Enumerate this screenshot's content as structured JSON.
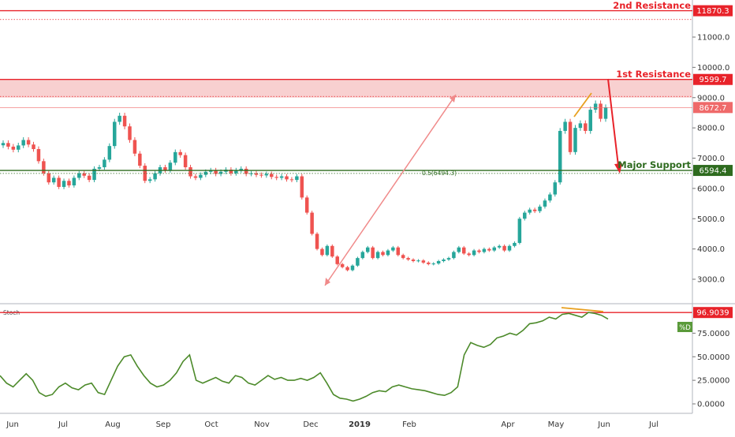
{
  "chart_data": {
    "type": "candlestick",
    "price_panel": {
      "y_ticks": [
        "3000.0",
        "4000.0",
        "5000.0",
        "6000.0",
        "7000.0",
        "8000.0",
        "9000.0",
        "10000.0",
        "11000.0"
      ],
      "levels": [
        {
          "name": "2nd Resistance",
          "value": 11870.3,
          "label": "11870.3",
          "color": "#e8232a"
        },
        {
          "name": "1st Resistance",
          "value": 9599.7,
          "label": "9599.7",
          "color": "#e8232a"
        },
        {
          "name": "current",
          "value": 8672.7,
          "label": "8672.7",
          "color": "#ef6a6a"
        },
        {
          "name": "Major Support",
          "value": 6594.4,
          "label": "6594.4",
          "color": "#2e6b1f"
        }
      ],
      "fib_label": "0.5(6494.3)",
      "closes": [
        7500,
        7380,
        7280,
        7420,
        7600,
        7450,
        7300,
        6900,
        6500,
        6200,
        6350,
        6050,
        6250,
        6100,
        6350,
        6500,
        6420,
        6280,
        6650,
        6700,
        6950,
        7400,
        8200,
        8400,
        8050,
        7600,
        7150,
        6750,
        6250,
        6300,
        6500,
        6700,
        6600,
        6850,
        7200,
        7100,
        6700,
        6400,
        6350,
        6450,
        6550,
        6600,
        6480,
        6550,
        6620,
        6500,
        6600,
        6650,
        6480,
        6500,
        6450,
        6430,
        6480,
        6380,
        6350,
        6400,
        6300,
        6280,
        6400,
        5700,
        5200,
        4500,
        4000,
        3800,
        4100,
        3750,
        3500,
        3400,
        3300,
        3450,
        3700,
        3900,
        4050,
        3700,
        3900,
        3800,
        3950,
        4050,
        3800,
        3700,
        3650,
        3600,
        3620,
        3550,
        3500,
        3520,
        3600,
        3650,
        3700,
        3900,
        4050,
        3850,
        3800,
        3950,
        3900,
        4000,
        3950,
        4050,
        4100,
        3950,
        4100,
        4200,
        5000,
        5200,
        5300,
        5250,
        5400,
        5600,
        5800,
        6200,
        7900,
        8200,
        7200,
        8000,
        8150,
        7900,
        8600,
        8800,
        8300,
        8672.7
      ],
      "x_labels": [
        "Jun",
        "Jul",
        "Aug",
        "Sep",
        "Oct",
        "Nov",
        "Dec",
        "2019",
        "Feb",
        "Apr",
        "May",
        "Jun",
        "Jul"
      ],
      "annotations": [
        "2nd Resistance",
        "1st Resistance",
        "Major Support"
      ]
    },
    "stoch_panel": {
      "title": "Stoch",
      "y_ticks": [
        "0.0000",
        "25.0000",
        "50.0000",
        "75.0000"
      ],
      "level_label": "96.9039",
      "badge": "%D",
      "values": [
        30,
        22,
        18,
        25,
        32,
        25,
        12,
        8,
        10,
        18,
        22,
        17,
        15,
        20,
        22,
        12,
        10,
        25,
        40,
        50,
        52,
        40,
        30,
        22,
        18,
        20,
        25,
        33,
        45,
        52,
        25,
        22,
        25,
        28,
        24,
        22,
        30,
        28,
        22,
        20,
        25,
        30,
        26,
        28,
        25,
        25,
        27,
        25,
        28,
        33,
        22,
        10,
        6,
        5,
        3,
        5,
        8,
        12,
        14,
        13,
        18,
        20,
        18,
        16,
        15,
        14,
        12,
        10,
        9,
        12,
        18,
        52,
        65,
        62,
        60,
        63,
        70,
        72,
        75,
        73,
        78,
        85,
        86,
        88,
        92,
        90,
        95,
        96,
        94,
        92,
        97,
        96,
        94,
        90
      ]
    }
  }
}
